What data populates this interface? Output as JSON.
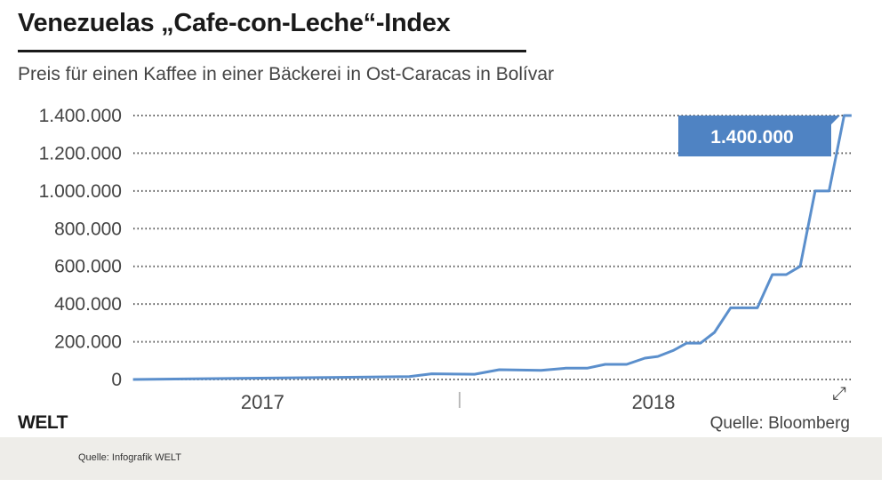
{
  "header": {
    "title": "Venezuelas „Cafe-con-Leche“-Index",
    "subtitle": "Preis für einen Kaffee in einer Bäckerei in Ost-Caracas in Bolívar"
  },
  "footer": {
    "logo": "WELT",
    "source": "Quelle: Bloomberg",
    "credit": "Quelle: Infografik WELT"
  },
  "colors": {
    "line": "#5b8fcc",
    "callout": "#4f83c3",
    "grid": "#555555",
    "footer_band": "#eeede9"
  },
  "icons": {
    "expand": "expand-arrows-icon"
  },
  "chart_data": {
    "type": "line",
    "title": "Venezuelas „Cafe-con-Leche“-Index",
    "subtitle": "Preis für einen Kaffee in einer Bäckerei in Ost-Caracas in Bolívar",
    "xlabel": "",
    "ylabel": "",
    "ylim": [
      0,
      1400000
    ],
    "yticks": [
      0,
      200000,
      400000,
      600000,
      800000,
      1000000,
      1200000,
      1400000
    ],
    "ytick_labels": [
      "0",
      "200.000",
      "400.000",
      "600.000",
      "800.000",
      "1.000.000",
      "1.200.000",
      "1.400.000"
    ],
    "xtick_labels": [
      "2017",
      "2018"
    ],
    "grid": "horizontal dotted",
    "callout": "1.400.000",
    "series": [
      {
        "points": [
          [
            "2017-03-02",
            0
          ],
          [
            "2017-11-15",
            15000
          ],
          [
            "2017-12-06",
            30000
          ],
          [
            "2018-01-15",
            28000
          ],
          [
            "2018-02-07",
            52000
          ],
          [
            "2018-03-18",
            48000
          ],
          [
            "2018-04-10",
            60000
          ],
          [
            "2018-04-30",
            60000
          ],
          [
            "2018-05-17",
            80000
          ],
          [
            "2018-06-06",
            80000
          ],
          [
            "2018-06-23",
            113000
          ],
          [
            "2018-07-05",
            122000
          ],
          [
            "2018-07-20",
            155000
          ],
          [
            "2018-08-01",
            193000
          ],
          [
            "2018-08-14",
            193000
          ],
          [
            "2018-08-27",
            250000
          ],
          [
            "2018-09-11",
            380000
          ],
          [
            "2018-10-06",
            380000
          ],
          [
            "2018-10-20",
            556000
          ],
          [
            "2018-11-02",
            556000
          ],
          [
            "2018-11-15",
            600000
          ],
          [
            "2018-11-29",
            1000000
          ],
          [
            "2018-12-12",
            1000000
          ],
          [
            "2018-12-26",
            1400000
          ],
          [
            "2019-01-02",
            1400000
          ]
        ]
      }
    ]
  }
}
